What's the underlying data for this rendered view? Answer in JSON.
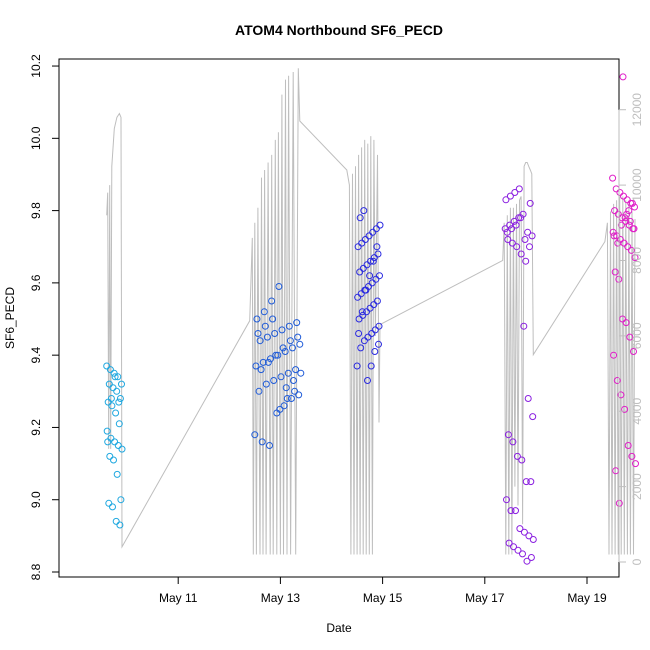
{
  "chart_data": {
    "type": "scatter",
    "title": "ATOM4 Northbound SF6_PECD",
    "xlabel": "Date",
    "ylabel": "SF6_PECD",
    "x_ticks": [
      "May 11",
      "May 13",
      "May 15",
      "May 17",
      "May 19"
    ],
    "y_ticks": [
      "8.8",
      "9.0",
      "9.2",
      "9.4",
      "9.6",
      "9.8",
      "10.0",
      "10.2"
    ],
    "y2_ticks": [
      "0",
      "2000",
      "4000",
      "6000",
      "8000",
      "10000",
      "12000"
    ],
    "ylim": [
      8.8,
      10.2
    ],
    "y2lim": [
      0,
      13000
    ],
    "x_start": "2018-05-09",
    "grid": false,
    "colors": {
      "scatter_points": [
        "#1fa8e0",
        "#1f5bd8",
        "#2b2be0",
        "#8a1fe0",
        "#e01fc8"
      ],
      "secondary_line": "#bebebe",
      "axis": "#000000"
    },
    "series": [
      {
        "name": "",
        "color": "#1fa8e0",
        "day_range": [
          0.6,
          0.9
        ],
        "values": [
          9.37,
          9.36,
          9.35,
          9.34,
          9.32,
          9.32,
          9.31,
          9.3,
          9.28,
          9.27,
          9.26,
          9.24,
          9.21,
          9.19,
          9.17,
          9.16,
          9.15,
          9.14,
          9.12,
          9.11,
          9.07,
          9.0,
          8.99,
          8.98,
          8.94,
          8.93,
          9.16,
          9.28,
          9.34,
          9.27
        ]
      },
      {
        "name": "",
        "color": "#1f5bd8",
        "day_range": [
          3.5,
          4.4
        ],
        "values": [
          9.18,
          9.16,
          9.15,
          9.24,
          9.26,
          9.28,
          9.29,
          9.3,
          9.32,
          9.33,
          9.34,
          9.35,
          9.36,
          9.37,
          9.38,
          9.39,
          9.4,
          9.41,
          9.42,
          9.43,
          9.44,
          9.45,
          9.46,
          9.47,
          9.48,
          9.49,
          9.5,
          9.52,
          9.55,
          9.59,
          9.31,
          9.33,
          9.35,
          9.36,
          9.38,
          9.4,
          9.42,
          9.44,
          9.45,
          9.46,
          9.48,
          9.5,
          9.25,
          9.28,
          9.3
        ]
      },
      {
        "name": "",
        "color": "#2b2be0",
        "day_range": [
          5.5,
          5.95
        ],
        "values": [
          9.37,
          9.42,
          9.44,
          9.45,
          9.46,
          9.47,
          9.48,
          9.5,
          9.51,
          9.52,
          9.53,
          9.54,
          9.55,
          9.56,
          9.57,
          9.58,
          9.59,
          9.6,
          9.61,
          9.62,
          9.63,
          9.64,
          9.65,
          9.66,
          9.67,
          9.68,
          9.7,
          9.71,
          9.72,
          9.73,
          9.74,
          9.75,
          9.76,
          9.78,
          9.8,
          9.33,
          9.37,
          9.41,
          9.43,
          9.46,
          9.52,
          9.58,
          9.62,
          9.66,
          9.7
        ]
      },
      {
        "name": "",
        "color": "#8a1fe0",
        "day_range": [
          8.4,
          8.95
        ],
        "values": [
          9.75,
          9.76,
          9.77,
          9.78,
          9.79,
          9.74,
          9.73,
          9.72,
          9.71,
          9.7,
          9.68,
          9.66,
          9.82,
          9.83,
          9.84,
          9.85,
          9.86,
          9.48,
          9.28,
          9.23,
          9.18,
          9.16,
          9.12,
          9.11,
          9.05,
          9.05,
          9.0,
          8.97,
          8.97,
          8.92,
          8.91,
          8.9,
          8.89,
          8.88,
          8.87,
          8.86,
          8.85,
          8.83,
          8.84,
          9.74,
          9.75,
          9.76,
          9.78,
          9.72,
          9.7
        ]
      },
      {
        "name": "",
        "color": "#e01fc8",
        "day_range": [
          10.5,
          10.95
        ],
        "values": [
          9.89,
          9.86,
          9.85,
          9.84,
          9.83,
          9.82,
          9.81,
          9.8,
          9.79,
          9.78,
          9.77,
          9.76,
          9.75,
          9.74,
          9.73,
          9.72,
          9.71,
          9.7,
          9.69,
          9.67,
          9.63,
          9.61,
          9.5,
          9.49,
          9.45,
          9.41,
          9.4,
          9.33,
          9.29,
          9.25,
          9.15,
          9.12,
          9.1,
          9.08,
          8.99,
          10.17,
          9.79,
          9.77,
          9.75,
          9.73,
          9.71,
          9.76,
          9.78,
          9.8,
          9.82
        ]
      }
    ],
    "secondary_series": {
      "name": "",
      "color": "#bebebe",
      "points": [
        [
          0.6,
          9200
        ],
        [
          0.62,
          9800
        ],
        [
          0.64,
          3000
        ],
        [
          0.66,
          10000
        ],
        [
          0.68,
          3000
        ],
        [
          0.7,
          10500
        ],
        [
          0.75,
          11500
        ],
        [
          0.8,
          11800
        ],
        [
          0.85,
          11900
        ],
        [
          0.88,
          11800
        ],
        [
          0.9,
          400
        ],
        [
          3.4,
          6400
        ],
        [
          3.45,
          8600
        ],
        [
          3.47,
          200
        ],
        [
          3.5,
          9000
        ],
        [
          3.53,
          200
        ],
        [
          3.56,
          9400
        ],
        [
          3.6,
          200
        ],
        [
          3.63,
          10200
        ],
        [
          3.66,
          200
        ],
        [
          3.69,
          10400
        ],
        [
          3.72,
          200
        ],
        [
          3.76,
          10600
        ],
        [
          3.8,
          200
        ],
        [
          3.83,
          10800
        ],
        [
          3.86,
          200
        ],
        [
          3.9,
          11200
        ],
        [
          3.93,
          200
        ],
        [
          3.96,
          11400
        ],
        [
          4.0,
          200
        ],
        [
          4.03,
          12400
        ],
        [
          4.06,
          200
        ],
        [
          4.1,
          12800
        ],
        [
          4.13,
          200
        ],
        [
          4.16,
          12900
        ],
        [
          4.2,
          200
        ],
        [
          4.25,
          13000
        ],
        [
          4.3,
          200
        ],
        [
          4.35,
          13100
        ],
        [
          4.38,
          11700
        ],
        [
          5.3,
          10400
        ],
        [
          5.35,
          10000
        ],
        [
          5.38,
          200
        ],
        [
          5.41,
          10300
        ],
        [
          5.44,
          200
        ],
        [
          5.47,
          10500
        ],
        [
          5.5,
          200
        ],
        [
          5.53,
          10800
        ],
        [
          5.56,
          200
        ],
        [
          5.59,
          11000
        ],
        [
          5.62,
          200
        ],
        [
          5.65,
          11200
        ],
        [
          5.68,
          200
        ],
        [
          5.71,
          11100
        ],
        [
          5.74,
          200
        ],
        [
          5.77,
          11300
        ],
        [
          5.8,
          200
        ],
        [
          5.83,
          11200
        ],
        [
          5.86,
          6000
        ],
        [
          5.9,
          10800
        ],
        [
          5.93,
          3700
        ],
        [
          5.95,
          6300
        ],
        [
          8.35,
          8000
        ],
        [
          8.38,
          9000
        ],
        [
          8.41,
          200
        ],
        [
          8.44,
          9200
        ],
        [
          8.47,
          200
        ],
        [
          8.5,
          9400
        ],
        [
          8.53,
          200
        ],
        [
          8.56,
          9400
        ],
        [
          8.59,
          2000
        ],
        [
          8.62,
          9500
        ],
        [
          8.65,
          1500
        ],
        [
          8.68,
          9600
        ],
        [
          8.71,
          9700
        ],
        [
          8.74,
          1000
        ],
        [
          8.77,
          10500
        ],
        [
          8.8,
          10600
        ],
        [
          8.83,
          10600
        ],
        [
          8.86,
          10500
        ],
        [
          8.89,
          10400
        ],
        [
          8.92,
          10300
        ],
        [
          8.95,
          5500
        ],
        [
          10.35,
          8500
        ],
        [
          10.4,
          9000
        ],
        [
          10.43,
          200
        ],
        [
          10.46,
          9300
        ],
        [
          10.49,
          200
        ],
        [
          10.52,
          9500
        ],
        [
          10.55,
          200
        ],
        [
          10.58,
          9600
        ],
        [
          10.61,
          200
        ],
        [
          10.64,
          9700
        ],
        [
          10.67,
          200
        ],
        [
          10.7,
          9700
        ],
        [
          10.73,
          200
        ],
        [
          10.76,
          9600
        ],
        [
          10.79,
          200
        ],
        [
          10.82,
          9500
        ],
        [
          10.85,
          200
        ],
        [
          10.88,
          9300
        ],
        [
          10.91,
          200
        ],
        [
          10.94,
          9100
        ]
      ]
    }
  }
}
